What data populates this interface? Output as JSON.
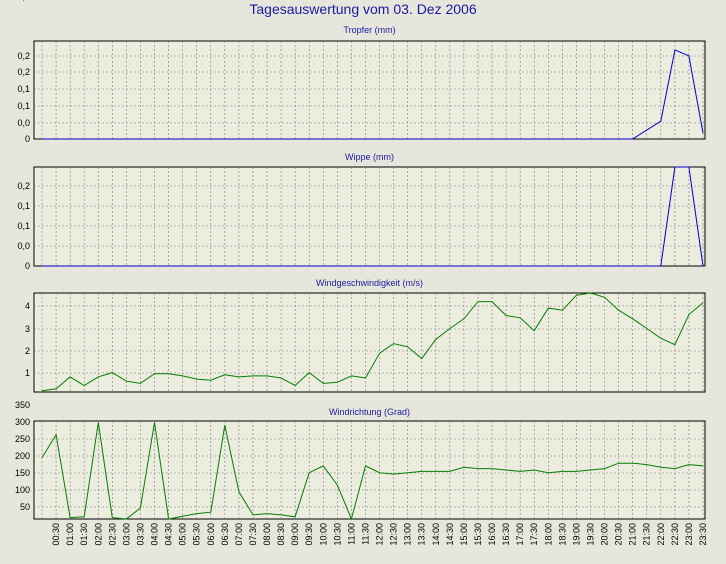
{
  "title": "Tagesauswertung vom 03. Dez 2006",
  "colors": {
    "background": "#e6e6dc",
    "plot_background": "#ececdf",
    "title": "#1a1aa0",
    "rain_line": "#0000cc",
    "wind_line": "#008000",
    "grid": "#7a7a7a"
  },
  "x_ticks": [
    "00:30",
    "01:00",
    "01:30",
    "02:00",
    "02:30",
    "03:00",
    "03:30",
    "04:00",
    "04:30",
    "05:00",
    "05:30",
    "06:00",
    "06:30",
    "07:00",
    "07:30",
    "08:00",
    "08:30",
    "09:00",
    "09:30",
    "10:00",
    "10:30",
    "11:00",
    "11:30",
    "12:00",
    "12:30",
    "13:00",
    "13:30",
    "14:00",
    "14:30",
    "15:00",
    "15:30",
    "16:00",
    "16:30",
    "17:00",
    "17:30",
    "18:00",
    "18:30",
    "19:00",
    "19:30",
    "20:00",
    "20:30",
    "21:00",
    "21:30",
    "22:00",
    "22:30",
    "23:00",
    "23:30"
  ],
  "chart_data": [
    {
      "type": "line",
      "title": "Tropfer (mm)",
      "y_tick_labels": [
        "0",
        "0,0",
        "0,1",
        "0,1",
        "0,2",
        "0,2"
      ],
      "ylim": [
        0,
        0.33
      ],
      "grid": true,
      "series": [
        {
          "color": "#0000cc",
          "values": [
            0,
            0,
            0,
            0,
            0,
            0,
            0,
            0,
            0,
            0,
            0,
            0,
            0,
            0,
            0,
            0,
            0,
            0,
            0,
            0,
            0,
            0,
            0,
            0,
            0,
            0,
            0,
            0,
            0,
            0,
            0,
            0,
            0,
            0,
            0,
            0,
            0,
            0,
            0,
            0,
            0,
            0,
            0,
            0.03,
            0.06,
            0.3,
            0.28,
            0.02
          ]
        }
      ]
    },
    {
      "type": "line",
      "title": "Wippe (mm)",
      "y_tick_labels": [
        "0",
        "0,0",
        "0,1",
        "0,1",
        "0,2",
        "0,2"
      ],
      "ylim": [
        0,
        0.33
      ],
      "grid": true,
      "series": [
        {
          "color": "#0000cc",
          "values": [
            0,
            0,
            0,
            0,
            0,
            0,
            0,
            0,
            0,
            0,
            0,
            0,
            0,
            0,
            0,
            0,
            0,
            0,
            0,
            0,
            0,
            0,
            0,
            0,
            0,
            0,
            0,
            0,
            0,
            0,
            0,
            0,
            0,
            0,
            0,
            0,
            0,
            0,
            0,
            0,
            0,
            0,
            0,
            0,
            0,
            0.33,
            0.33,
            0
          ]
        }
      ]
    },
    {
      "type": "line",
      "title": "Windgeschwindigkeit (m/s)",
      "y_tick_labels": [
        "1",
        "2",
        "3",
        "4"
      ],
      "ylim": [
        0,
        4.6
      ],
      "grid": true,
      "series": [
        {
          "color": "#008000",
          "values": [
            0.05,
            0.15,
            0.7,
            0.3,
            0.7,
            0.9,
            0.5,
            0.4,
            0.85,
            0.85,
            0.75,
            0.6,
            0.55,
            0.8,
            0.7,
            0.75,
            0.75,
            0.65,
            0.3,
            0.9,
            0.4,
            0.45,
            0.75,
            0.65,
            1.8,
            2.25,
            2.1,
            1.55,
            2.45,
            2.95,
            3.4,
            4.2,
            4.2,
            3.55,
            3.45,
            2.85,
            3.9,
            3.8,
            4.5,
            4.6,
            4.4,
            3.8,
            3.4,
            2.95,
            2.5,
            2.2,
            3.6,
            4.15
          ]
        }
      ]
    },
    {
      "type": "line",
      "title": "Windrichtung (Grad)",
      "y_tick_labels": [
        "50",
        "100",
        "150",
        "200",
        "250",
        "300",
        "350"
      ],
      "ylim": [
        0,
        360
      ],
      "grid": true,
      "series": [
        {
          "color": "#008000",
          "values": [
            225,
            310,
            5,
            8,
            355,
            5,
            0,
            40,
            355,
            0,
            10,
            20,
            25,
            345,
            100,
            15,
            20,
            15,
            8,
            170,
            195,
            125,
            0,
            195,
            170,
            165,
            170,
            175,
            175,
            175,
            190,
            185,
            185,
            180,
            175,
            180,
            170,
            175,
            175,
            180,
            185,
            205,
            205,
            200,
            190,
            185,
            200,
            195
          ]
        }
      ]
    }
  ]
}
